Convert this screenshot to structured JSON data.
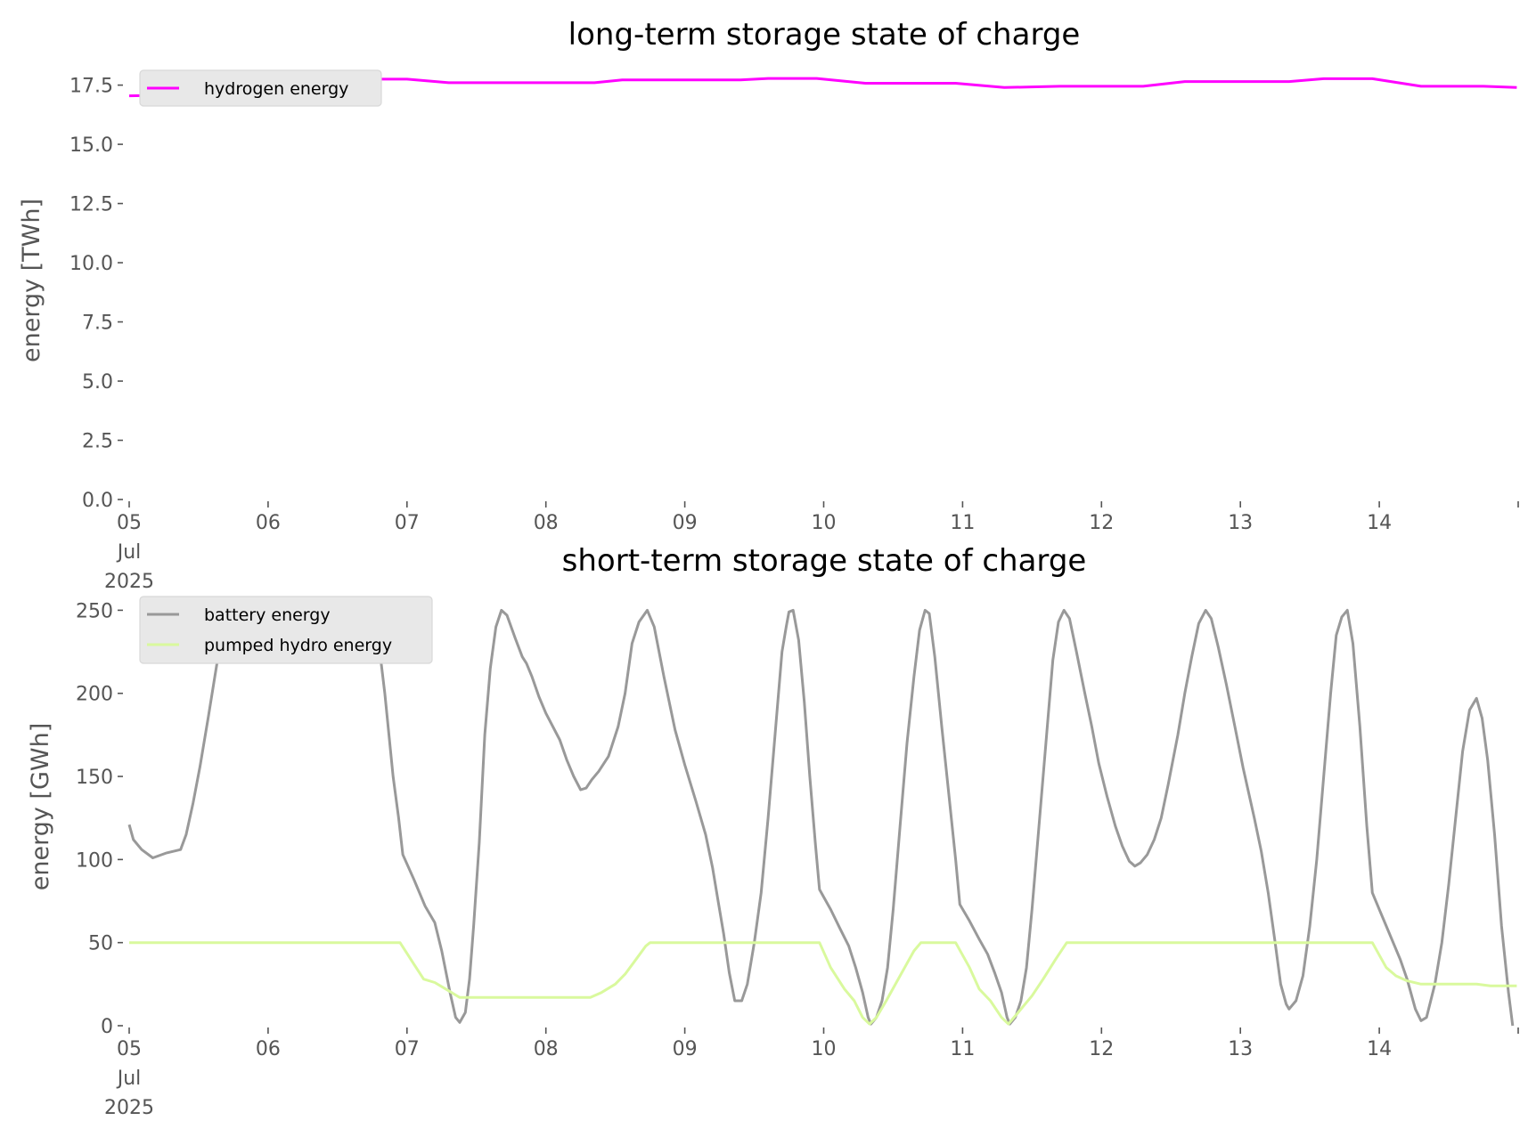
{
  "chart_data": [
    {
      "type": "line",
      "title": "long-term storage state of charge",
      "xlabel": "",
      "ylabel": "energy [TWh]",
      "x_unit": "days since 05 Jul 2025",
      "xlim": [
        0,
        10
      ],
      "ylim": [
        0,
        18.5
      ],
      "yticks": [
        "0.0",
        "2.5",
        "5.0",
        "7.5",
        "10.0",
        "12.5",
        "15.0",
        "17.5"
      ],
      "xticks": [
        "05",
        "06",
        "07",
        "08",
        "09",
        "10",
        "11",
        "12",
        "13",
        "14"
      ],
      "xtick_first_extra": [
        "Jul",
        "2025"
      ],
      "grid": false,
      "legend_placement": "top-left",
      "series": [
        {
          "name": "hydrogen energy",
          "color": "#ff00ff",
          "points": [
            [
              0,
              17.05
            ],
            [
              0.15,
              17.06
            ],
            [
              0.3,
              17.1
            ],
            [
              0.55,
              17.3
            ],
            [
              0.9,
              17.5
            ],
            [
              1.3,
              17.65
            ],
            [
              1.7,
              17.75
            ],
            [
              2.0,
              17.75
            ],
            [
              2.3,
              17.6
            ],
            [
              3.35,
              17.6
            ],
            [
              3.55,
              17.72
            ],
            [
              4.4,
              17.72
            ],
            [
              4.6,
              17.78
            ],
            [
              4.95,
              17.78
            ],
            [
              5.3,
              17.58
            ],
            [
              5.95,
              17.58
            ],
            [
              6.3,
              17.4
            ],
            [
              6.7,
              17.45
            ],
            [
              7.3,
              17.45
            ],
            [
              7.6,
              17.65
            ],
            [
              8.35,
              17.65
            ],
            [
              8.6,
              17.77
            ],
            [
              8.95,
              17.77
            ],
            [
              9.3,
              17.45
            ],
            [
              9.75,
              17.45
            ],
            [
              9.99,
              17.4
            ]
          ]
        }
      ]
    },
    {
      "type": "line",
      "title": "short-term storage state of charge",
      "xlabel": "",
      "ylabel": "energy [GWh]",
      "x_unit": "days since 05 Jul 2025",
      "xlim": [
        0,
        10
      ],
      "ylim": [
        0,
        262
      ],
      "yticks": [
        "0",
        "50",
        "100",
        "150",
        "200",
        "250"
      ],
      "xticks": [
        "05",
        "06",
        "07",
        "08",
        "09",
        "10",
        "11",
        "12",
        "13",
        "14"
      ],
      "xtick_first_extra": [
        "Jul",
        "2025"
      ],
      "grid": false,
      "legend_placement": "top-left",
      "series": [
        {
          "name": "battery energy",
          "color": "#999999",
          "points": [
            [
              0,
              121
            ],
            [
              0.03,
              112
            ],
            [
              0.09,
              106
            ],
            [
              0.17,
              101
            ],
            [
              0.27,
              104
            ],
            [
              0.37,
              106
            ],
            [
              0.41,
              115
            ],
            [
              0.46,
              134
            ],
            [
              0.51,
              156
            ],
            [
              0.57,
              186
            ],
            [
              0.63,
              217
            ],
            [
              0.68,
              237
            ],
            [
              0.72,
              248
            ],
            [
              0.78,
              245
            ],
            [
              0.85,
              238
            ],
            [
              0.95,
              234
            ],
            [
              1.05,
              233
            ],
            [
              1.2,
              232
            ],
            [
              1.35,
              232
            ],
            [
              1.5,
              233
            ],
            [
              1.6,
              238
            ],
            [
              1.68,
              245
            ],
            [
              1.73,
              250
            ],
            [
              1.78,
              242
            ],
            [
              1.84,
              200
            ],
            [
              1.9,
              150
            ],
            [
              1.94,
              125
            ],
            [
              1.97,
              103
            ],
            [
              2.05,
              88
            ],
            [
              2.13,
              72
            ],
            [
              2.2,
              62
            ],
            [
              2.25,
              45
            ],
            [
              2.31,
              20
            ],
            [
              2.35,
              5
            ],
            [
              2.38,
              2
            ],
            [
              2.42,
              8
            ],
            [
              2.45,
              28
            ],
            [
              2.48,
              60
            ],
            [
              2.52,
              110
            ],
            [
              2.56,
              175
            ],
            [
              2.6,
              215
            ],
            [
              2.64,
              240
            ],
            [
              2.68,
              250
            ],
            [
              2.72,
              247
            ],
            [
              2.78,
              233
            ],
            [
              2.83,
              222
            ],
            [
              2.86,
              218
            ],
            [
              2.9,
              210
            ],
            [
              2.95,
              198
            ],
            [
              3.0,
              188
            ],
            [
              3.1,
              172
            ],
            [
              3.15,
              160
            ],
            [
              3.2,
              150
            ],
            [
              3.25,
              142
            ],
            [
              3.29,
              143
            ],
            [
              3.33,
              148
            ],
            [
              3.38,
              153
            ],
            [
              3.45,
              162
            ],
            [
              3.52,
              180
            ],
            [
              3.57,
              200
            ],
            [
              3.62,
              230
            ],
            [
              3.67,
              243
            ],
            [
              3.73,
              250
            ],
            [
              3.78,
              240
            ],
            [
              3.85,
              210
            ],
            [
              3.93,
              178
            ],
            [
              4.0,
              157
            ],
            [
              4.08,
              135
            ],
            [
              4.15,
              115
            ],
            [
              4.2,
              95
            ],
            [
              4.24,
              75
            ],
            [
              4.28,
              55
            ],
            [
              4.32,
              32
            ],
            [
              4.36,
              15
            ],
            [
              4.41,
              15
            ],
            [
              4.45,
              25
            ],
            [
              4.5,
              50
            ],
            [
              4.55,
              80
            ],
            [
              4.6,
              125
            ],
            [
              4.65,
              175
            ],
            [
              4.7,
              225
            ],
            [
              4.73,
              240
            ],
            [
              4.75,
              249
            ],
            [
              4.78,
              250
            ],
            [
              4.82,
              232
            ],
            [
              4.86,
              195
            ],
            [
              4.9,
              150
            ],
            [
              4.94,
              110
            ],
            [
              4.97,
              82
            ],
            [
              5.05,
              70
            ],
            [
              5.12,
              58
            ],
            [
              5.18,
              48
            ],
            [
              5.23,
              35
            ],
            [
              5.28,
              20
            ],
            [
              5.32,
              5
            ],
            [
              5.34,
              1
            ],
            [
              5.38,
              5
            ],
            [
              5.42,
              15
            ],
            [
              5.46,
              35
            ],
            [
              5.5,
              70
            ],
            [
              5.55,
              120
            ],
            [
              5.6,
              170
            ],
            [
              5.65,
              210
            ],
            [
              5.69,
              238
            ],
            [
              5.73,
              250
            ],
            [
              5.76,
              248
            ],
            [
              5.8,
              222
            ],
            [
              5.85,
              180
            ],
            [
              5.9,
              140
            ],
            [
              5.95,
              100
            ],
            [
              5.98,
              73
            ],
            [
              6.05,
              63
            ],
            [
              6.12,
              52
            ],
            [
              6.18,
              43
            ],
            [
              6.23,
              32
            ],
            [
              6.28,
              20
            ],
            [
              6.32,
              5
            ],
            [
              6.34,
              1
            ],
            [
              6.38,
              5
            ],
            [
              6.42,
              15
            ],
            [
              6.46,
              35
            ],
            [
              6.5,
              70
            ],
            [
              6.55,
              120
            ],
            [
              6.6,
              170
            ],
            [
              6.65,
              220
            ],
            [
              6.69,
              243
            ],
            [
              6.73,
              250
            ],
            [
              6.77,
              245
            ],
            [
              6.82,
              225
            ],
            [
              6.88,
              200
            ],
            [
              6.93,
              180
            ],
            [
              6.98,
              158
            ],
            [
              7.04,
              138
            ],
            [
              7.1,
              120
            ],
            [
              7.15,
              108
            ],
            [
              7.2,
              99
            ],
            [
              7.24,
              96
            ],
            [
              7.28,
              98
            ],
            [
              7.33,
              103
            ],
            [
              7.38,
              112
            ],
            [
              7.43,
              125
            ],
            [
              7.48,
              145
            ],
            [
              7.55,
              175
            ],
            [
              7.6,
              200
            ],
            [
              7.65,
              222
            ],
            [
              7.7,
              242
            ],
            [
              7.75,
              250
            ],
            [
              7.79,
              245
            ],
            [
              7.84,
              228
            ],
            [
              7.9,
              205
            ],
            [
              7.96,
              180
            ],
            [
              8.02,
              155
            ],
            [
              8.1,
              125
            ],
            [
              8.15,
              105
            ],
            [
              8.2,
              80
            ],
            [
              8.25,
              50
            ],
            [
              8.29,
              25
            ],
            [
              8.33,
              13
            ],
            [
              8.35,
              10
            ],
            [
              8.4,
              15
            ],
            [
              8.45,
              30
            ],
            [
              8.5,
              60
            ],
            [
              8.55,
              100
            ],
            [
              8.6,
              150
            ],
            [
              8.65,
              200
            ],
            [
              8.69,
              235
            ],
            [
              8.73,
              246
            ],
            [
              8.77,
              250
            ],
            [
              8.81,
              230
            ],
            [
              8.86,
              180
            ],
            [
              8.91,
              120
            ],
            [
              8.95,
              80
            ],
            [
              9.0,
              70
            ],
            [
              9.05,
              60
            ],
            [
              9.1,
              50
            ],
            [
              9.15,
              40
            ],
            [
              9.2,
              28
            ],
            [
              9.26,
              10
            ],
            [
              9.3,
              3
            ],
            [
              9.34,
              5
            ],
            [
              9.4,
              25
            ],
            [
              9.45,
              50
            ],
            [
              9.5,
              85
            ],
            [
              9.55,
              125
            ],
            [
              9.6,
              165
            ],
            [
              9.65,
              190
            ],
            [
              9.7,
              197
            ],
            [
              9.74,
              185
            ],
            [
              9.78,
              160
            ],
            [
              9.83,
              115
            ],
            [
              9.88,
              60
            ],
            [
              9.93,
              20
            ],
            [
              9.96,
              0
            ]
          ]
        },
        {
          "name": "pumped hydro energy",
          "color": "#d9f99d",
          "points": [
            [
              0,
              50
            ],
            [
              1.95,
              50
            ],
            [
              2.05,
              37
            ],
            [
              2.12,
              28
            ],
            [
              2.2,
              26
            ],
            [
              2.28,
              22
            ],
            [
              2.38,
              17
            ],
            [
              3.32,
              17
            ],
            [
              3.4,
              20
            ],
            [
              3.5,
              25
            ],
            [
              3.57,
              31
            ],
            [
              3.65,
              40
            ],
            [
              3.72,
              48
            ],
            [
              3.75,
              50
            ],
            [
              4.97,
              50
            ],
            [
              5.05,
              35
            ],
            [
              5.15,
              22
            ],
            [
              5.22,
              15
            ],
            [
              5.28,
              5
            ],
            [
              5.33,
              1
            ],
            [
              5.38,
              5
            ],
            [
              5.45,
              15
            ],
            [
              5.55,
              30
            ],
            [
              5.65,
              45
            ],
            [
              5.7,
              50
            ],
            [
              5.95,
              50
            ],
            [
              6.05,
              35
            ],
            [
              6.12,
              22
            ],
            [
              6.2,
              15
            ],
            [
              6.28,
              5
            ],
            [
              6.33,
              1
            ],
            [
              6.4,
              8
            ],
            [
              6.5,
              18
            ],
            [
              6.58,
              28
            ],
            [
              6.67,
              40
            ],
            [
              6.75,
              50
            ],
            [
              8.95,
              50
            ],
            [
              9.05,
              35
            ],
            [
              9.12,
              30
            ],
            [
              9.2,
              27
            ],
            [
              9.3,
              25
            ],
            [
              9.7,
              25
            ],
            [
              9.8,
              24
            ],
            [
              9.99,
              24
            ]
          ]
        }
      ]
    }
  ]
}
